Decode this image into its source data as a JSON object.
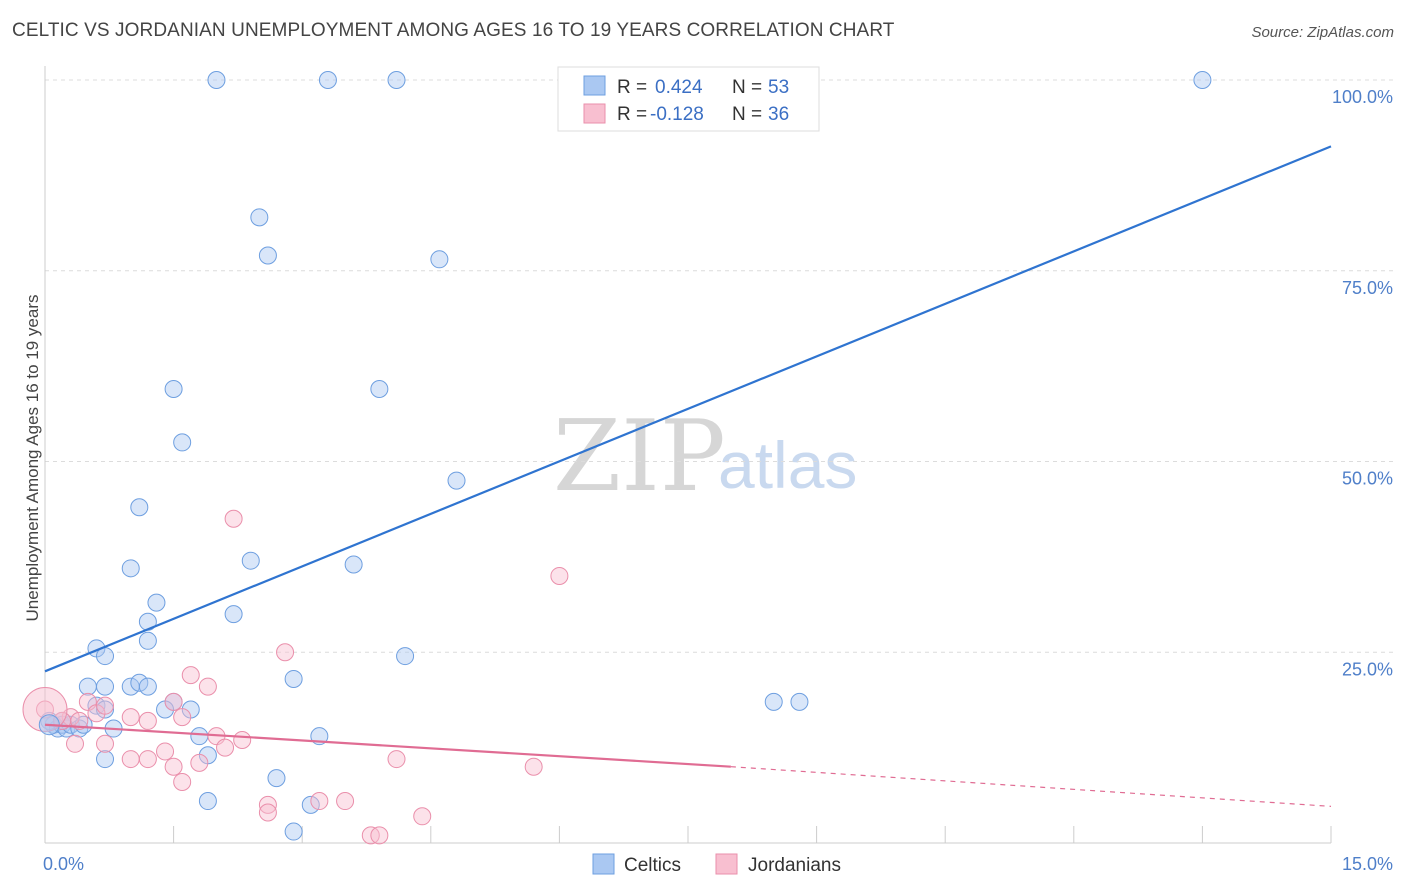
{
  "title": "CELTIC VS JORDANIAN UNEMPLOYMENT AMONG AGES 16 TO 19 YEARS CORRELATION CHART",
  "source": "Source: ZipAtlas.com",
  "watermark": {
    "zip": "ZIP",
    "atlas": "atlas"
  },
  "legend_box": {
    "rows": [
      {
        "r_label": "R =",
        "r_value": "0.424",
        "n_label": "N =",
        "n_value": "53",
        "color": "#aac8f2"
      },
      {
        "r_label": "R =",
        "r_value": "-0.128",
        "n_label": "N =",
        "n_value": "36",
        "color": "#f8bfd0"
      }
    ]
  },
  "bottom_legend": [
    {
      "label": "Celtics",
      "color": "#aac8f2"
    },
    {
      "label": "Jordanians",
      "color": "#f8bfd0"
    }
  ],
  "chart_data": {
    "type": "scatter",
    "title": "CELTIC VS JORDANIAN UNEMPLOYMENT AMONG AGES 16 TO 19 YEARS CORRELATION CHART",
    "xlabel": "",
    "ylabel": "Unemployment Among Ages 16 to 19 years",
    "xlim": [
      0,
      15
    ],
    "ylim": [
      0,
      100
    ],
    "x_tick_labels": [
      "0.0%",
      "15.0%"
    ],
    "y_tick_labels": [
      "100.0%",
      "75.0%",
      "50.0%",
      "25.0%"
    ],
    "y_ticks": [
      100,
      75,
      50,
      25
    ],
    "grid": true,
    "legend_position": "top-center",
    "series": [
      {
        "name": "Celtics",
        "color": "#aac8f2",
        "stroke": "#6e9fe0",
        "trend": {
          "x0": 0,
          "y0": 22.5,
          "x1": 15,
          "y1": 91.3,
          "color": "#2f74d0"
        },
        "points": [
          [
            2.0,
            100
          ],
          [
            3.3,
            100
          ],
          [
            4.1,
            100
          ],
          [
            13.5,
            100
          ],
          [
            2.5,
            82
          ],
          [
            2.6,
            77
          ],
          [
            4.6,
            76.5
          ],
          [
            1.5,
            59.5
          ],
          [
            3.9,
            59.5
          ],
          [
            1.6,
            52.5
          ],
          [
            4.8,
            47.5
          ],
          [
            1.1,
            44
          ],
          [
            2.4,
            37
          ],
          [
            3.6,
            36.5
          ],
          [
            1.0,
            36
          ],
          [
            1.3,
            31.5
          ],
          [
            2.2,
            30
          ],
          [
            1.2,
            29
          ],
          [
            1.2,
            26.5
          ],
          [
            0.6,
            25.5
          ],
          [
            0.7,
            24.5
          ],
          [
            4.2,
            24.5
          ],
          [
            2.9,
            21.5
          ],
          [
            0.5,
            20.5
          ],
          [
            0.7,
            20.5
          ],
          [
            1.0,
            20.5
          ],
          [
            1.1,
            21
          ],
          [
            1.2,
            20.5
          ],
          [
            1.5,
            18.5
          ],
          [
            1.7,
            17.5
          ],
          [
            8.5,
            18.5
          ],
          [
            8.8,
            18.5
          ],
          [
            0.6,
            18
          ],
          [
            0.7,
            17.5
          ],
          [
            0.1,
            15.5
          ],
          [
            0.15,
            15
          ],
          [
            0.2,
            15.5
          ],
          [
            0.25,
            15
          ],
          [
            0.3,
            15.5
          ],
          [
            0.4,
            15
          ],
          [
            0.8,
            15
          ],
          [
            1.4,
            17.5
          ],
          [
            1.8,
            14
          ],
          [
            3.2,
            14
          ],
          [
            1.9,
            11.5
          ],
          [
            0.7,
            11
          ],
          [
            2.7,
            8.5
          ],
          [
            1.9,
            5.5
          ],
          [
            3.1,
            5
          ],
          [
            2.9,
            1.5
          ],
          [
            0.05,
            16
          ],
          [
            0.2,
            16
          ],
          [
            0.45,
            15.5
          ]
        ]
      },
      {
        "name": "Jordanians",
        "color": "#f8bfd0",
        "stroke": "#ea8fab",
        "trend": {
          "x0": 0,
          "y0": 15.5,
          "x1": 8.0,
          "y1": 10.0,
          "dash_x1": 15,
          "dash_y1": 4.8,
          "color": "#e06c93"
        },
        "points": [
          [
            2.2,
            42.5
          ],
          [
            6.0,
            35
          ],
          [
            2.8,
            25
          ],
          [
            1.7,
            22
          ],
          [
            1.9,
            20.5
          ],
          [
            0.5,
            18.5
          ],
          [
            0.6,
            17
          ],
          [
            0.7,
            18
          ],
          [
            1.0,
            16.5
          ],
          [
            1.2,
            16
          ],
          [
            1.5,
            18.5
          ],
          [
            1.6,
            16.5
          ],
          [
            0.3,
            16.5
          ],
          [
            0.4,
            16
          ],
          [
            0.2,
            16
          ],
          [
            0.35,
            13
          ],
          [
            0.7,
            13
          ],
          [
            2.0,
            14
          ],
          [
            2.3,
            13.5
          ],
          [
            2.1,
            12.5
          ],
          [
            1.4,
            12
          ],
          [
            1.2,
            11
          ],
          [
            1.0,
            11
          ],
          [
            1.5,
            10
          ],
          [
            1.8,
            10.5
          ],
          [
            4.1,
            11
          ],
          [
            5.7,
            10
          ],
          [
            1.6,
            8
          ],
          [
            2.6,
            5
          ],
          [
            2.6,
            4
          ],
          [
            3.2,
            5.5
          ],
          [
            3.5,
            5.5
          ],
          [
            4.4,
            3.5
          ],
          [
            3.8,
            1
          ],
          [
            3.9,
            1
          ],
          [
            0.0,
            17.5
          ]
        ]
      }
    ]
  }
}
